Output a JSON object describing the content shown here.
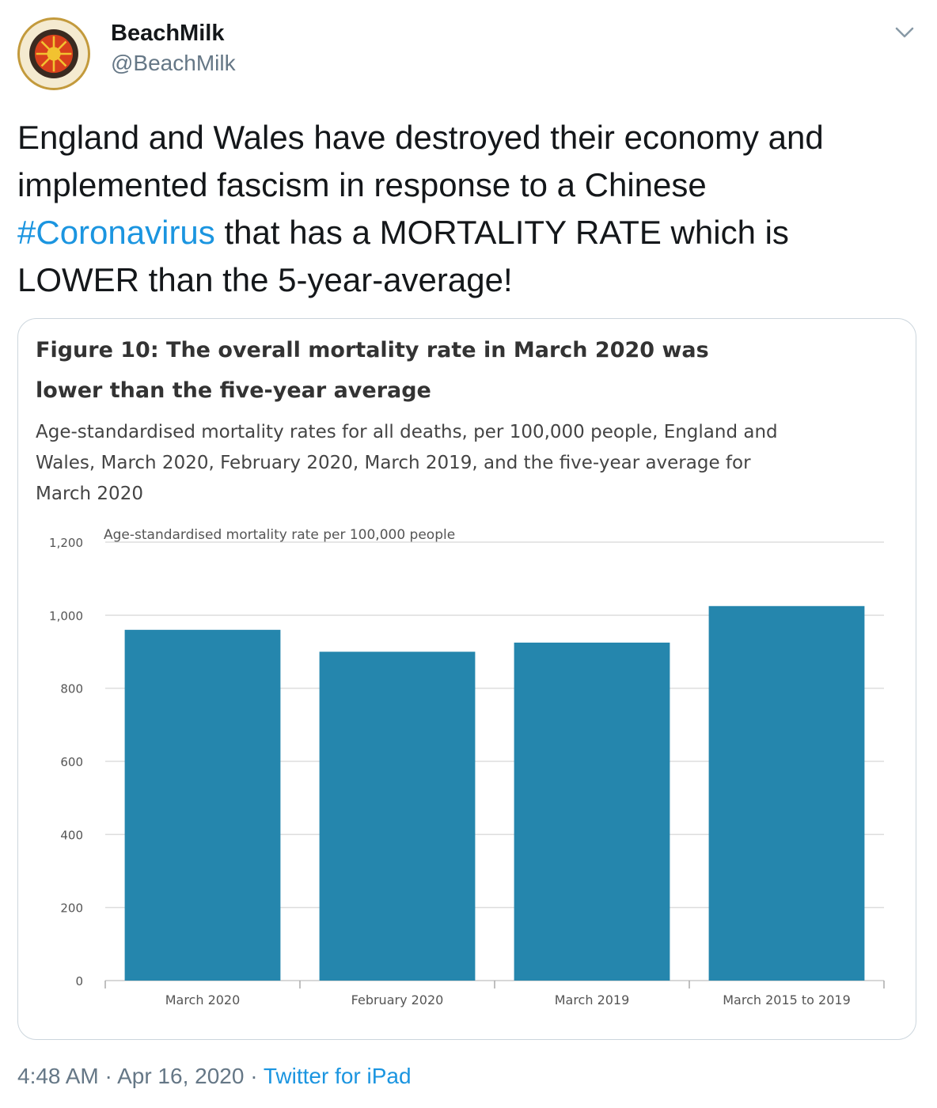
{
  "tweet": {
    "display_name": "BeachMilk",
    "handle": "@BeachMilk",
    "text_before": "England and Wales have destroyed their economy and implemented fascism in response to a Chinese ",
    "hashtag": "#Coronavirus",
    "text_after": " that has a MORTALITY RATE  which is LOWER than the 5-year-average!",
    "time": "4:48 AM",
    "separator": " · ",
    "date": "Apr 16, 2020",
    "source": "Twitter for iPad",
    "link_color": "#1b95e0"
  },
  "card": {
    "figure_title": "Figure 10: The overall mortality rate in March 2020 was lower than the five-year average",
    "figure_subtitle": "Age-standardised mortality rates for all deaths, per 100,000 people, England and Wales, March 2020, February 2020, March 2019, and the five-year average for March 2020"
  },
  "icons": {
    "avatar": "sun-emblem-avatar-icon",
    "more": "chevron-down-icon"
  },
  "chart_data": {
    "type": "bar",
    "categories": [
      "March 2020",
      "February 2020",
      "March 2019",
      "March 2015 to 2019"
    ],
    "values": [
      960,
      900,
      925,
      1025
    ],
    "title": "Figure 10: The overall mortality rate in March 2020 was lower than the five-year average",
    "xlabel": "",
    "ylabel": "Age-standardised mortality rate per 100,000 people",
    "ylim": [
      0,
      1200
    ],
    "yticks": [
      0,
      200,
      400,
      600,
      800,
      1000,
      1200
    ],
    "ytick_labels": [
      "0",
      "200",
      "400",
      "600",
      "800",
      "1,000",
      "1,200"
    ],
    "grid": true,
    "legend": "none",
    "bar_color": "#2586ad"
  }
}
